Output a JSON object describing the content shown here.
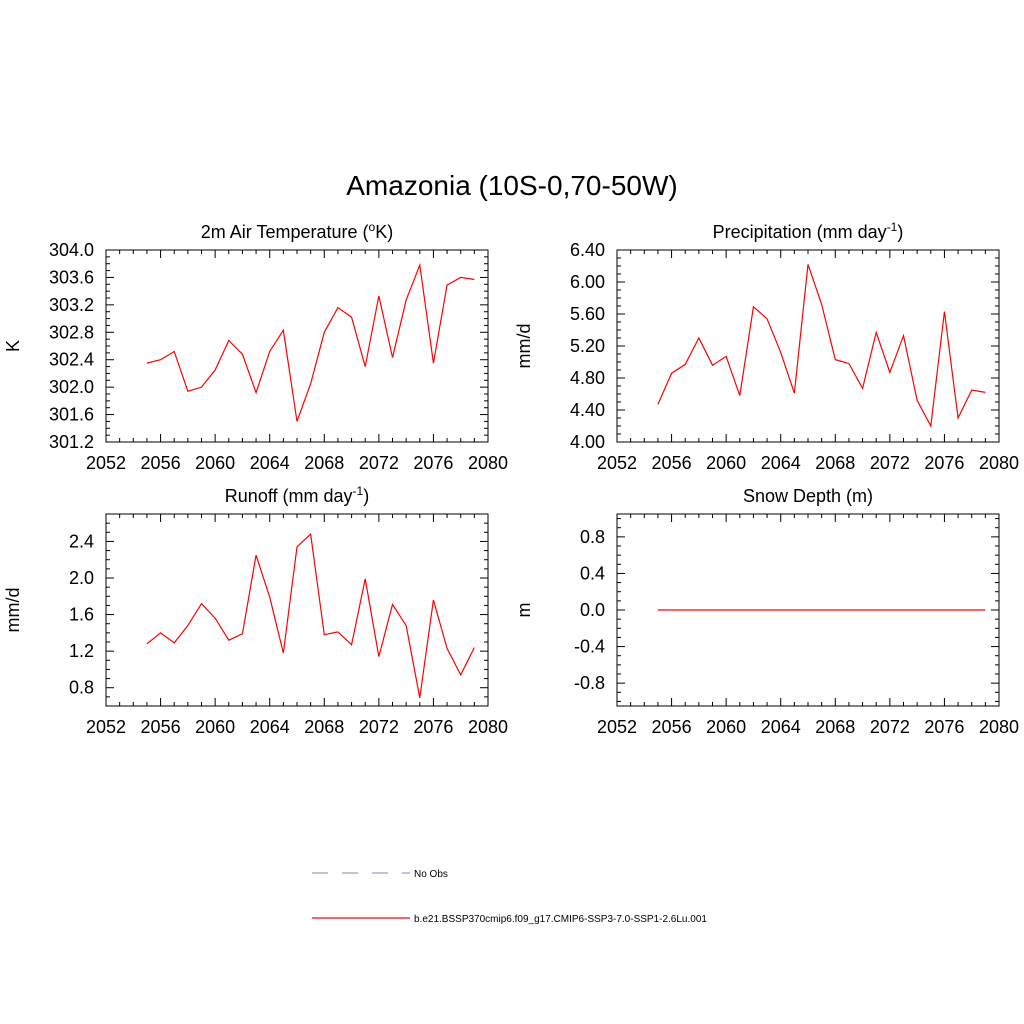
{
  "figure": {
    "title": "Amazonia (10S-0,70-50W)"
  },
  "legend": {
    "entries": [
      {
        "label": "No Obs",
        "color": "#9999dd",
        "style": "dashed"
      },
      {
        "label": "b.e21.BSSP370cmip6.f09_g17.CMIP6-SSP3-7.0-SSP1-2.6Lu.001",
        "color": "#ff0000",
        "style": "solid"
      }
    ]
  },
  "chart_data": [
    {
      "type": "line",
      "title_main": "2m Air Temperature (",
      "title_sup": "o",
      "title_tail": "K)",
      "ylabel": "K",
      "xlim": [
        2052,
        2080
      ],
      "ylim": [
        301.2,
        304.0
      ],
      "yticks": [
        301.2,
        301.6,
        302.0,
        302.4,
        302.8,
        303.2,
        303.6,
        304.0
      ],
      "ytick_labels": [
        "301.2",
        "301.6",
        "302.0",
        "302.4",
        "302.8",
        "303.2",
        "303.6",
        "304.0"
      ],
      "xticks": [
        2052,
        2056,
        2060,
        2064,
        2068,
        2072,
        2076,
        2080
      ],
      "color": "#ff0000",
      "x": [
        2055,
        2056,
        2057,
        2058,
        2059,
        2060,
        2061,
        2062,
        2063,
        2064,
        2065,
        2066,
        2067,
        2068,
        2069,
        2070,
        2071,
        2072,
        2073,
        2074,
        2075,
        2076,
        2077,
        2078,
        2079
      ],
      "y": [
        302.35,
        302.4,
        302.52,
        301.94,
        302.0,
        302.25,
        302.68,
        302.48,
        301.92,
        302.52,
        302.83,
        301.5,
        302.05,
        302.8,
        303.16,
        303.02,
        302.3,
        303.33,
        302.43,
        303.27,
        303.78,
        302.35,
        303.49,
        303.6,
        303.57
      ]
    },
    {
      "type": "line",
      "title_main": "Precipitation (mm day",
      "title_sup": "-1",
      "title_tail": ")",
      "ylabel": "mm/d",
      "xlim": [
        2052,
        2080
      ],
      "ylim": [
        4.0,
        6.4
      ],
      "yticks": [
        4.0,
        4.4,
        4.8,
        5.2,
        5.6,
        6.0,
        6.4
      ],
      "ytick_labels": [
        "4.00",
        "4.40",
        "4.80",
        "5.20",
        "5.60",
        "6.00",
        "6.40"
      ],
      "xticks": [
        2052,
        2056,
        2060,
        2064,
        2068,
        2072,
        2076,
        2080
      ],
      "color": "#ff0000",
      "x": [
        2055,
        2056,
        2057,
        2058,
        2059,
        2060,
        2061,
        2062,
        2063,
        2064,
        2065,
        2066,
        2067,
        2068,
        2069,
        2070,
        2071,
        2072,
        2073,
        2074,
        2075,
        2076,
        2077,
        2078,
        2079
      ],
      "y": [
        4.47,
        4.86,
        4.97,
        5.3,
        4.96,
        5.07,
        4.58,
        5.69,
        5.54,
        5.12,
        4.61,
        6.22,
        5.72,
        5.03,
        4.98,
        4.67,
        5.37,
        4.87,
        5.33,
        4.52,
        4.2,
        5.63,
        4.3,
        4.65,
        4.62
      ]
    },
    {
      "type": "line",
      "title_main": "Runoff (mm day",
      "title_sup": "-1",
      "title_tail": ")",
      "ylabel": "mm/d",
      "xlim": [
        2052,
        2080
      ],
      "ylim": [
        0.6,
        2.7
      ],
      "yticks": [
        0.8,
        1.2,
        1.6,
        2.0,
        2.4
      ],
      "ytick_labels": [
        "0.8",
        "1.2",
        "1.6",
        "2.0",
        "2.4"
      ],
      "xticks": [
        2052,
        2056,
        2060,
        2064,
        2068,
        2072,
        2076,
        2080
      ],
      "color": "#ff0000",
      "x": [
        2055,
        2056,
        2057,
        2058,
        2059,
        2060,
        2061,
        2062,
        2063,
        2064,
        2065,
        2066,
        2067,
        2068,
        2069,
        2070,
        2071,
        2072,
        2073,
        2074,
        2075,
        2076,
        2077,
        2078,
        2079
      ],
      "y": [
        1.28,
        1.4,
        1.29,
        1.48,
        1.72,
        1.56,
        1.32,
        1.39,
        2.25,
        1.79,
        1.18,
        2.34,
        2.48,
        1.38,
        1.41,
        1.27,
        1.99,
        1.14,
        1.71,
        1.48,
        0.69,
        1.76,
        1.23,
        0.94,
        1.24
      ]
    },
    {
      "type": "line",
      "title_main": "Snow Depth (m)",
      "title_sup": "",
      "title_tail": "",
      "ylabel": "m",
      "xlim": [
        2052,
        2080
      ],
      "ylim": [
        -1.05,
        1.05
      ],
      "yticks": [
        -0.8,
        -0.4,
        0.0,
        0.4,
        0.8
      ],
      "ytick_labels": [
        "-0.8",
        "-0.4",
        "0.0",
        "0.4",
        "0.8"
      ],
      "xticks": [
        2052,
        2056,
        2060,
        2064,
        2068,
        2072,
        2076,
        2080
      ],
      "color": "#ff0000",
      "x": [
        2055,
        2056,
        2057,
        2058,
        2059,
        2060,
        2061,
        2062,
        2063,
        2064,
        2065,
        2066,
        2067,
        2068,
        2069,
        2070,
        2071,
        2072,
        2073,
        2074,
        2075,
        2076,
        2077,
        2078,
        2079
      ],
      "y": [
        0,
        0,
        0,
        0,
        0,
        0,
        0,
        0,
        0,
        0,
        0,
        0,
        0,
        0,
        0,
        0,
        0,
        0,
        0,
        0,
        0,
        0,
        0,
        0,
        0
      ]
    }
  ]
}
